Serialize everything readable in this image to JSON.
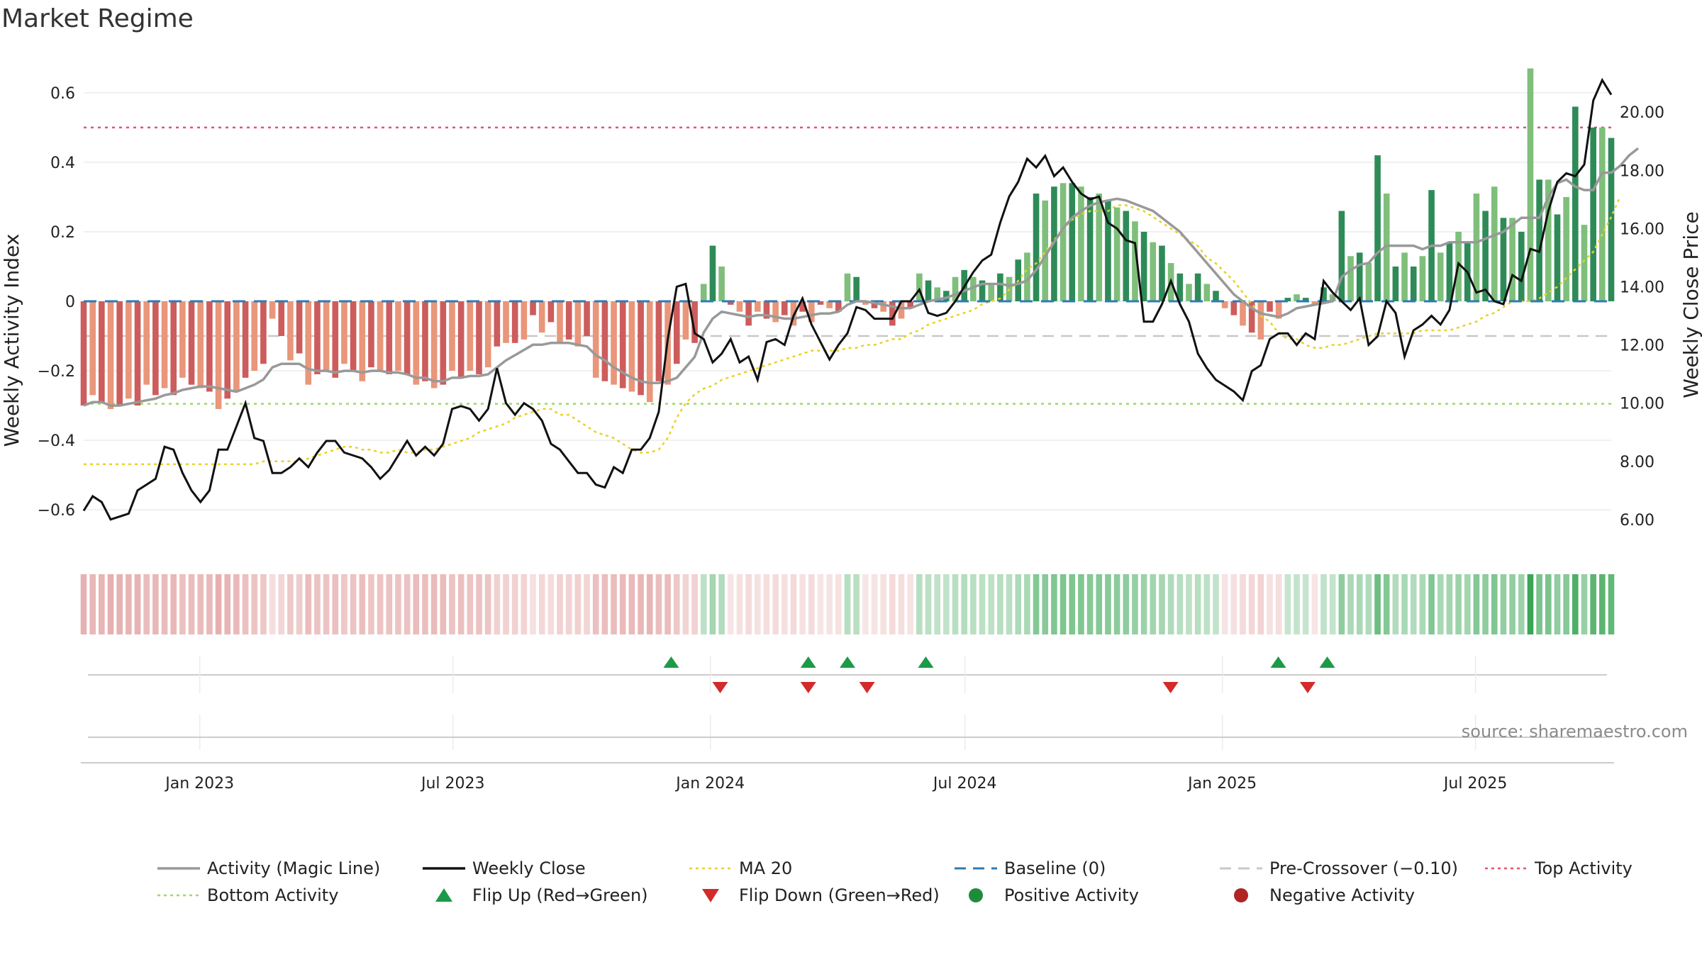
{
  "chart_data": {
    "type": "bar",
    "title": "Market Regime",
    "source": "source: sharemaestro.com",
    "y_left": {
      "label": "Weekly Activity Index",
      "range": [
        -0.72,
        0.72
      ],
      "ticks": [
        -0.6,
        -0.4,
        -0.2,
        0,
        0.2,
        0.4,
        0.6
      ],
      "tick_labels": [
        "−0.6",
        "−0.4",
        "−0.2",
        "0",
        "0.2",
        "0.4",
        "0.6"
      ]
    },
    "y_right": {
      "label": "Weekly Close Price",
      "range": [
        4.9,
        22.1
      ],
      "ticks": [
        6,
        8,
        10,
        12,
        14,
        16,
        18,
        20
      ],
      "tick_labels": [
        "6.00",
        "8.00",
        "10.00",
        "12.00",
        "14.00",
        "16.00",
        "18.00",
        "20.00"
      ]
    },
    "x_axis": {
      "start": "2022-10-10",
      "end": "2025-10-06",
      "ticks": [
        "2023-01-01",
        "2023-07-01",
        "2024-01-01",
        "2024-07-01",
        "2025-01-01",
        "2025-07-01"
      ],
      "tick_labels": [
        "Jan 2023",
        "Jul 2023",
        "Jan 2024",
        "Jul 2024",
        "Jan 2025",
        "Jul 2025"
      ]
    },
    "reference_lines": {
      "top_activity": 0.5,
      "bottom_activity": -0.295,
      "pre_crossover": -0.1,
      "baseline": 0
    },
    "weekly_activity": [
      -0.3,
      -0.27,
      -0.29,
      -0.31,
      -0.3,
      -0.28,
      -0.3,
      -0.24,
      -0.27,
      -0.25,
      -0.27,
      -0.22,
      -0.24,
      -0.25,
      -0.26,
      -0.31,
      -0.28,
      -0.26,
      -0.22,
      -0.2,
      -0.18,
      -0.05,
      -0.1,
      -0.17,
      -0.15,
      -0.24,
      -0.21,
      -0.2,
      -0.22,
      -0.18,
      -0.2,
      -0.23,
      -0.19,
      -0.2,
      -0.21,
      -0.2,
      -0.21,
      -0.24,
      -0.23,
      -0.25,
      -0.24,
      -0.2,
      -0.22,
      -0.2,
      -0.21,
      -0.19,
      -0.13,
      -0.12,
      -0.12,
      -0.11,
      -0.04,
      -0.09,
      -0.06,
      -0.12,
      -0.11,
      -0.13,
      -0.1,
      -0.22,
      -0.23,
      -0.24,
      -0.25,
      -0.26,
      -0.27,
      -0.29,
      -0.23,
      -0.24,
      -0.18,
      -0.11,
      -0.12,
      0.05,
      0.16,
      0.1,
      -0.01,
      -0.03,
      -0.07,
      -0.03,
      -0.05,
      -0.06,
      -0.04,
      -0.07,
      -0.03,
      -0.06,
      -0.01,
      -0.02,
      -0.03,
      0.08,
      0.07,
      -0.01,
      -0.02,
      -0.03,
      -0.07,
      -0.05,
      -0.02,
      0.08,
      0.06,
      0.04,
      0.03,
      0.07,
      0.09,
      0.07,
      0.06,
      0.05,
      0.08,
      0.07,
      0.12,
      0.14,
      0.31,
      0.29,
      0.33,
      0.34,
      0.34,
      0.33,
      0.3,
      0.31,
      0.29,
      0.27,
      0.26,
      0.23,
      0.2,
      0.17,
      0.16,
      0.11,
      0.08,
      0.05,
      0.08,
      0.05,
      0.03,
      -0.02,
      -0.04,
      -0.07,
      -0.09,
      -0.11,
      -0.03,
      -0.05,
      0.01,
      0.02,
      0.01,
      -0.01,
      0.04,
      0.02,
      0.26,
      0.13,
      0.14,
      0.11,
      0.42,
      0.31,
      0.1,
      0.14,
      0.1,
      0.13,
      0.32,
      0.14,
      0.17,
      0.2,
      0.17,
      0.31,
      0.26,
      0.33,
      0.24,
      0.24,
      0.2,
      0.67,
      0.35,
      0.35,
      0.25,
      0.3,
      0.56,
      0.22,
      0.5,
      0.5,
      0.47
    ],
    "magic_line": [
      -0.3,
      -0.29,
      -0.29,
      -0.3,
      -0.3,
      -0.295,
      -0.29,
      -0.285,
      -0.28,
      -0.27,
      -0.265,
      -0.255,
      -0.25,
      -0.245,
      -0.245,
      -0.25,
      -0.255,
      -0.26,
      -0.25,
      -0.24,
      -0.225,
      -0.19,
      -0.18,
      -0.18,
      -0.18,
      -0.195,
      -0.2,
      -0.2,
      -0.205,
      -0.2,
      -0.2,
      -0.205,
      -0.2,
      -0.2,
      -0.205,
      -0.205,
      -0.21,
      -0.22,
      -0.22,
      -0.23,
      -0.23,
      -0.22,
      -0.22,
      -0.215,
      -0.215,
      -0.21,
      -0.19,
      -0.17,
      -0.155,
      -0.14,
      -0.125,
      -0.125,
      -0.12,
      -0.12,
      -0.12,
      -0.125,
      -0.13,
      -0.155,
      -0.17,
      -0.19,
      -0.205,
      -0.22,
      -0.23,
      -0.235,
      -0.235,
      -0.23,
      -0.22,
      -0.19,
      -0.16,
      -0.09,
      -0.05,
      -0.03,
      -0.035,
      -0.04,
      -0.045,
      -0.04,
      -0.04,
      -0.045,
      -0.05,
      -0.05,
      -0.045,
      -0.04,
      -0.035,
      -0.035,
      -0.03,
      -0.01,
      0,
      0,
      -0.005,
      -0.01,
      -0.015,
      -0.02,
      -0.02,
      -0.01,
      0,
      0.005,
      0.01,
      0.02,
      0.03,
      0.04,
      0.05,
      0.05,
      0.05,
      0.045,
      0.05,
      0.06,
      0.09,
      0.13,
      0.17,
      0.21,
      0.24,
      0.26,
      0.275,
      0.285,
      0.29,
      0.295,
      0.29,
      0.28,
      0.27,
      0.26,
      0.24,
      0.22,
      0.2,
      0.17,
      0.14,
      0.11,
      0.08,
      0.05,
      0.02,
      0,
      -0.02,
      -0.035,
      -0.04,
      -0.045,
      -0.035,
      -0.02,
      -0.015,
      -0.01,
      -0.005,
      0,
      0.07,
      0.09,
      0.105,
      0.11,
      0.14,
      0.16,
      0.16,
      0.16,
      0.16,
      0.15,
      0.16,
      0.16,
      0.17,
      0.17,
      0.17,
      0.17,
      0.18,
      0.19,
      0.2,
      0.22,
      0.24,
      0.24,
      0.24,
      0.3,
      0.34,
      0.35,
      0.33,
      0.32,
      0.32,
      0.37,
      0.37,
      0.39,
      0.42,
      0.44
    ],
    "weekly_close": [
      6.3,
      6.8,
      6.6,
      6.0,
      6.1,
      6.2,
      7.0,
      7.2,
      7.4,
      8.5,
      8.4,
      7.6,
      7.0,
      6.6,
      7.0,
      8.4,
      8.4,
      9.2,
      10.0,
      8.8,
      8.7,
      7.6,
      7.6,
      7.8,
      8.1,
      7.8,
      8.3,
      8.7,
      8.7,
      8.3,
      8.2,
      8.1,
      7.8,
      7.4,
      7.7,
      8.2,
      8.7,
      8.2,
      8.5,
      8.2,
      8.6,
      9.8,
      9.9,
      9.8,
      9.4,
      9.8,
      11.2,
      10.0,
      9.6,
      10.0,
      9.8,
      9.4,
      8.6,
      8.4,
      8.0,
      7.6,
      7.6,
      7.2,
      7.1,
      7.8,
      7.6,
      8.4,
      8.4,
      8.8,
      9.7,
      12.2,
      14.0,
      14.1,
      12.4,
      12.2,
      11.4,
      11.7,
      12.2,
      11.4,
      11.6,
      10.8,
      12.1,
      12.2,
      12.0,
      13.0,
      13.6,
      12.7,
      12.1,
      11.5,
      12.0,
      12.4,
      13.3,
      13.2,
      12.9,
      12.9,
      12.9,
      13.5,
      13.5,
      13.9,
      13.1,
      13.0,
      13.1,
      13.5,
      14.0,
      14.5,
      14.9,
      15.1,
      16.2,
      17.1,
      17.6,
      18.4,
      18.1,
      18.5,
      17.8,
      18.1,
      17.6,
      17.2,
      17.0,
      17.1,
      16.2,
      16.0,
      15.6,
      15.5,
      12.8,
      12.8,
      13.4,
      14.2,
      13.4,
      12.8,
      11.7,
      11.2,
      10.8,
      10.6,
      10.4,
      10.1,
      11.1,
      11.3,
      12.2,
      12.4,
      12.4,
      12.0,
      12.4,
      12.2,
      14.2,
      13.8,
      13.5,
      13.2,
      13.6,
      12.0,
      12.3,
      13.5,
      13.1,
      11.6,
      12.5,
      12.7,
      13.0,
      12.7,
      13.2,
      14.8,
      14.5,
      13.8,
      13.9,
      13.5,
      13.4,
      14.4,
      14.2,
      15.3,
      15.2,
      16.6,
      17.6,
      17.9,
      17.8,
      18.2,
      20.4,
      21.1,
      20.6
    ],
    "ma20": [
      7.9,
      7.9,
      7.9,
      7.9,
      7.9,
      7.9,
      7.9,
      7.9,
      7.9,
      7.9,
      7.9,
      7.9,
      7.9,
      7.9,
      7.9,
      7.9,
      7.9,
      7.9,
      7.9,
      7.9,
      8.0,
      8.0,
      8.0,
      8.0,
      8.0,
      8.1,
      8.2,
      8.3,
      8.4,
      8.5,
      8.5,
      8.4,
      8.4,
      8.3,
      8.3,
      8.4,
      8.3,
      8.3,
      8.4,
      8.4,
      8.5,
      8.6,
      8.7,
      8.8,
      9.0,
      9.1,
      9.2,
      9.3,
      9.5,
      9.6,
      9.7,
      9.8,
      9.8,
      9.6,
      9.6,
      9.4,
      9.2,
      9.0,
      8.9,
      8.8,
      8.6,
      8.4,
      8.3,
      8.3,
      8.4,
      8.8,
      9.5,
      10.0,
      10.3,
      10.5,
      10.6,
      10.8,
      10.9,
      11.0,
      11.1,
      11.2,
      11.3,
      11.4,
      11.5,
      11.6,
      11.7,
      11.8,
      11.8,
      11.8,
      11.8,
      11.9,
      11.9,
      12.0,
      12.0,
      12.1,
      12.2,
      12.2,
      12.4,
      12.5,
      12.7,
      12.8,
      12.9,
      13.0,
      13.1,
      13.2,
      13.4,
      13.5,
      13.6,
      13.9,
      14.2,
      14.6,
      14.8,
      15.2,
      15.6,
      16.0,
      16.3,
      16.5,
      16.6,
      16.6,
      16.6,
      16.8,
      16.8,
      16.7,
      16.6,
      16.4,
      16.2,
      16.0,
      15.8,
      15.6,
      15.4,
      15.0,
      14.8,
      14.5,
      14.2,
      13.8,
      13.4,
      13.0,
      12.8,
      12.4,
      12.2,
      12.2,
      12.0,
      11.9,
      11.9,
      12.0,
      12.0,
      12.1,
      12.2,
      12.3,
      12.4,
      12.4,
      12.4,
      12.4,
      12.4,
      12.5,
      12.5,
      12.5,
      12.5,
      12.6,
      12.7,
      12.8,
      13.0,
      13.1,
      13.3,
      13.5,
      13.5,
      13.5,
      13.6,
      13.8,
      14.0,
      14.3,
      14.6,
      14.9,
      15.2,
      15.8,
      16.4,
      17.1
    ],
    "flip_up_dates": [
      "2023-12-04",
      "2024-03-11",
      "2024-04-08",
      "2024-06-03",
      "2025-02-10",
      "2025-03-17"
    ],
    "flip_down_dates": [
      "2024-01-08",
      "2024-03-11",
      "2024-04-22",
      "2024-11-25",
      "2025-03-03"
    ],
    "legend": [
      {
        "label": "Activity (Magic Line)",
        "marker": "line",
        "color": "#999999"
      },
      {
        "label": "Weekly Close",
        "marker": "line",
        "color": "#111111"
      },
      {
        "label": "MA 20",
        "marker": "dotted",
        "color": "#e8d227"
      },
      {
        "label": "Baseline (0)",
        "marker": "dashed",
        "color": "#2e7bb4"
      },
      {
        "label": "Pre-Crossover (−0.10)",
        "marker": "dashed",
        "color": "#c8c8c8"
      },
      {
        "label": "Top Activity",
        "marker": "dotted",
        "color": "#e0556b"
      },
      {
        "label": "Bottom Activity",
        "marker": "dotted",
        "color": "#9cd86b"
      },
      {
        "label": "Flip Up (Red→Green)",
        "marker": "triangle-up",
        "color": "#1c9a48"
      },
      {
        "label": "Flip Down (Green→Red)",
        "marker": "triangle-down",
        "color": "#d32a2a"
      },
      {
        "label": "Positive Activity",
        "marker": "circle",
        "color": "#1f8c3b"
      },
      {
        "label": "Negative Activity",
        "marker": "circle",
        "color": "#b02424"
      }
    ],
    "colors": {
      "positive_dark": "#2e8b57",
      "positive_light": "#7fbf7b",
      "negative_dark": "#cd5c5c",
      "negative_light": "#e9967a",
      "grid": "#ececec"
    }
  }
}
